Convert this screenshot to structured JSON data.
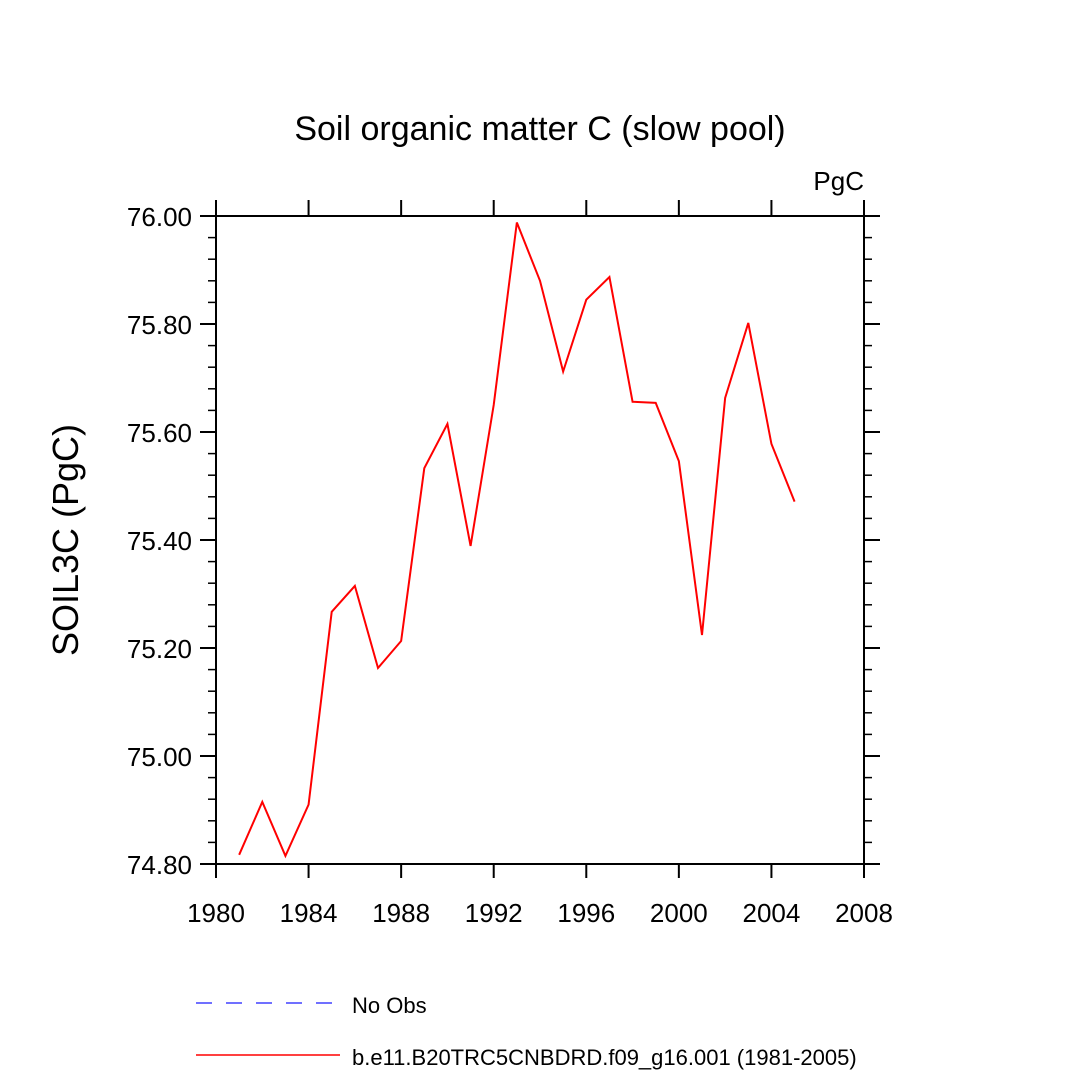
{
  "chart_data": {
    "type": "line",
    "title": "Soil organic matter C (slow pool)",
    "units_label": "PgC",
    "xlabel": "",
    "ylabel": "SOIL3C  (PgC)",
    "xlim": [
      1980,
      2008
    ],
    "ylim": [
      74.8,
      76.0
    ],
    "x_ticks": [
      1980,
      1984,
      1988,
      1992,
      1996,
      2000,
      2004,
      2008
    ],
    "y_ticks": [
      "74.80",
      "75.00",
      "75.20",
      "75.40",
      "75.60",
      "75.80",
      "76.00"
    ],
    "grid": false,
    "legend_position": "bottom",
    "series": [
      {
        "name": "No Obs",
        "color": "#4040ff",
        "line_style": "dashed",
        "x": [],
        "values": []
      },
      {
        "name": "b.e11.B20TRC5CNBDRD.f09_g16.001 (1981-2005)",
        "color": "#ff0000",
        "line_style": "solid",
        "x": [
          1981,
          1982,
          1983,
          1984,
          1985,
          1986,
          1987,
          1988,
          1989,
          1990,
          1991,
          1992,
          1993,
          1994,
          1995,
          1996,
          1997,
          1998,
          1999,
          2000,
          2001,
          2002,
          2003,
          2004,
          2005
        ],
        "values": [
          74.817,
          74.915,
          74.815,
          74.91,
          75.267,
          75.315,
          75.163,
          75.213,
          75.533,
          75.615,
          75.389,
          75.65,
          75.988,
          75.88,
          75.712,
          75.845,
          75.887,
          75.656,
          75.654,
          75.546,
          75.224,
          75.663,
          75.802,
          75.578,
          75.471
        ]
      }
    ]
  }
}
